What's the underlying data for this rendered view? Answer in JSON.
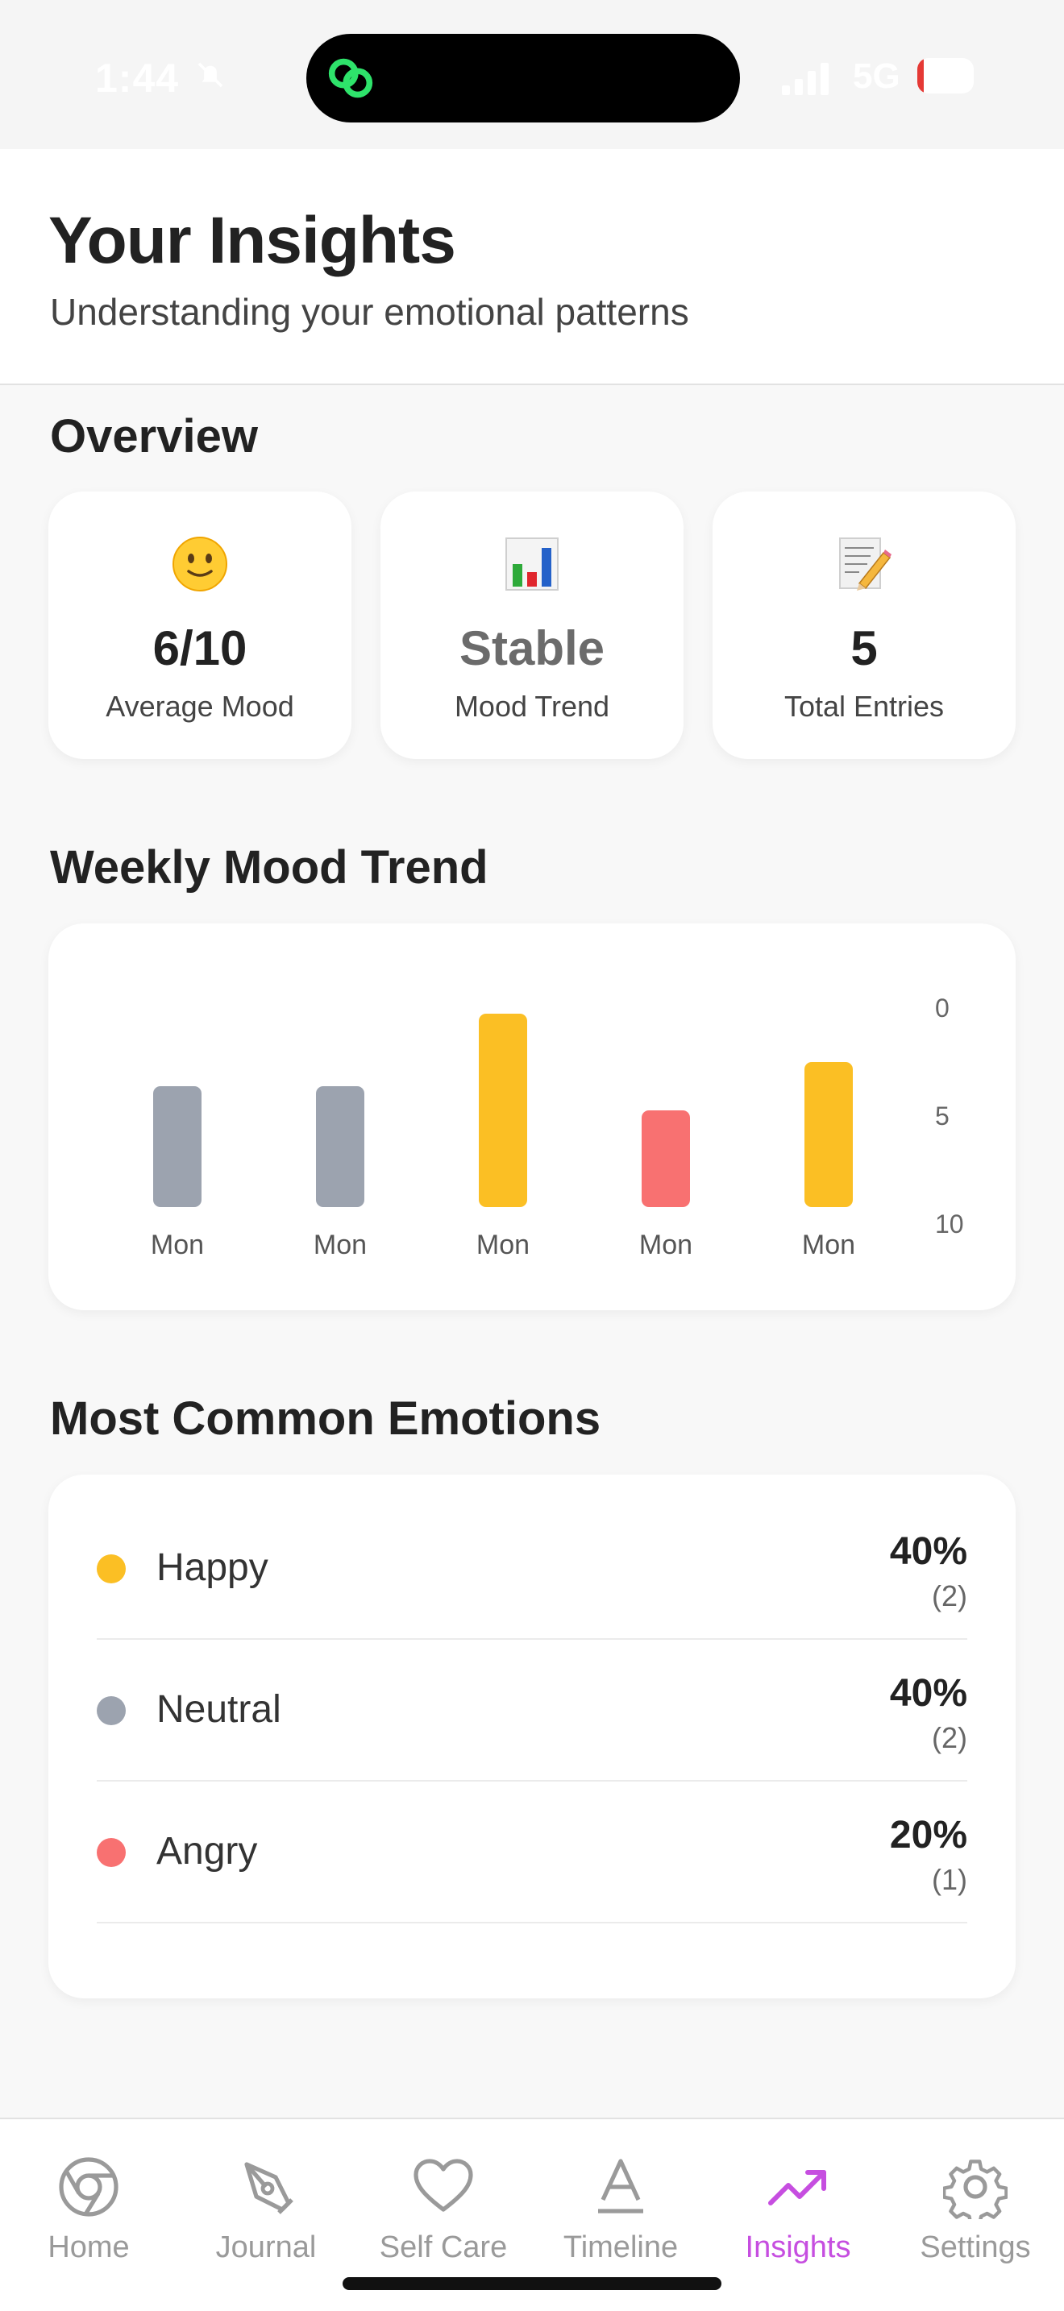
{
  "status_bar": {
    "time": "1:44",
    "network": "5G",
    "battery_level": 0.11,
    "battery_text": "11"
  },
  "header": {
    "title": "Your Insights",
    "subtitle": "Understanding your emotional patterns"
  },
  "overview": {
    "title": "Overview",
    "cards": [
      {
        "icon": "slightly-smiling-face-emoji",
        "value": "6/10",
        "label": "Average Mood"
      },
      {
        "icon": "bar-chart-emoji",
        "value": "Stable",
        "label": "Mood Trend"
      },
      {
        "icon": "memo-emoji",
        "value": "5",
        "label": "Total Entries"
      }
    ]
  },
  "weekly": {
    "title": "Weekly Mood Trend"
  },
  "chart_data": {
    "type": "bar",
    "categories": [
      "Mon",
      "Mon",
      "Mon",
      "Mon",
      "Mon"
    ],
    "values": [
      5,
      5,
      8,
      4,
      6
    ],
    "bar_colors": [
      "#9ca3af",
      "#9ca3af",
      "#fbbf24",
      "#f87171",
      "#fbbf24"
    ],
    "y_ticks": [
      "0",
      "5",
      "10"
    ],
    "ylim": [
      0,
      10
    ]
  },
  "emotions": {
    "title": "Most Common Emotions",
    "items": [
      {
        "name": "Happy",
        "percent": "40%",
        "count": "(2)",
        "color": "#fbbf24"
      },
      {
        "name": "Neutral",
        "percent": "40%",
        "count": "(2)",
        "color": "#9ca3af"
      },
      {
        "name": "Angry",
        "percent": "20%",
        "count": "(1)",
        "color": "#f87171"
      }
    ]
  },
  "nav": {
    "active_color": "#c64ee0",
    "items": [
      {
        "label": "Home",
        "icon": "chrome-circle-icon"
      },
      {
        "label": "Journal",
        "icon": "pen-tool-icon"
      },
      {
        "label": "Self Care",
        "icon": "heart-icon"
      },
      {
        "label": "Timeline",
        "icon": "letter-a-icon"
      },
      {
        "label": "Insights",
        "icon": "trending-up-icon"
      },
      {
        "label": "Settings",
        "icon": "gear-icon"
      }
    ]
  }
}
